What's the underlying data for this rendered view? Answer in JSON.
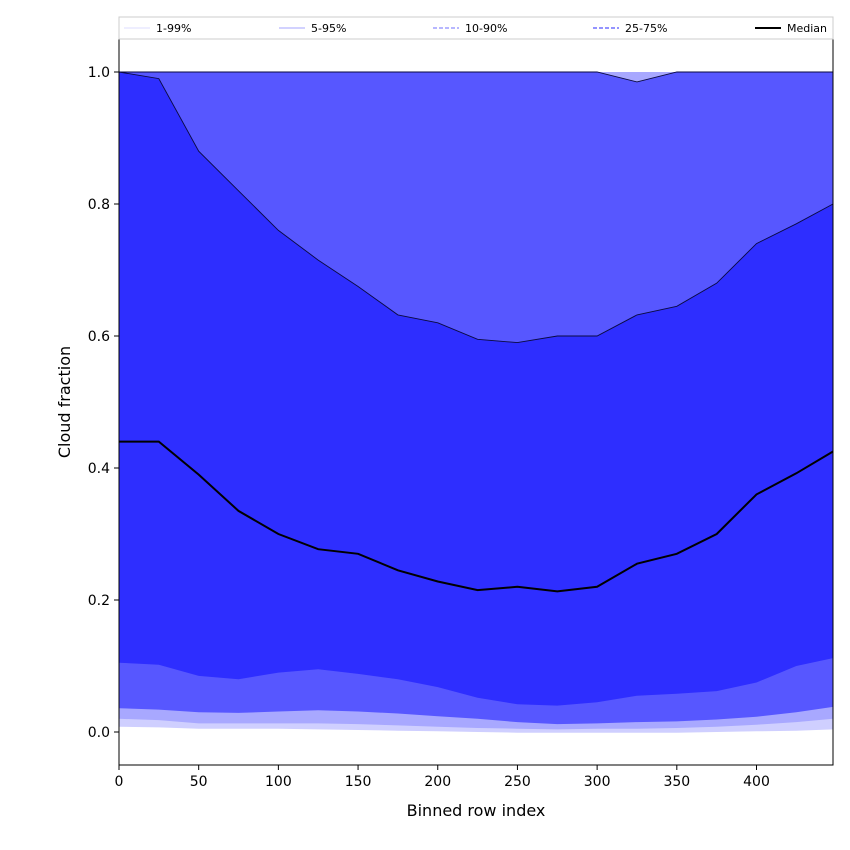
{
  "chart_data": {
    "type": "area",
    "xlabel": "Binned row index",
    "ylabel": "Cloud fraction",
    "xlim": [
      0,
      448
    ],
    "ylim": [
      -0.05,
      1.05
    ],
    "xticks": [
      0,
      50,
      100,
      150,
      200,
      250,
      300,
      350,
      400
    ],
    "yticks": [
      0.0,
      0.2,
      0.4,
      0.6,
      0.8,
      1.0
    ],
    "xtick_labels": [
      "0",
      "50",
      "100",
      "150",
      "200",
      "250",
      "300",
      "350",
      "400"
    ],
    "ytick_labels": [
      "0.0",
      "0.2",
      "0.4",
      "0.6",
      "0.8",
      "1.0"
    ],
    "legend_position": "top",
    "legend": [
      {
        "label": "1-99%",
        "color": "#e3e3ff",
        "style": "solid"
      },
      {
        "label": "5-95%",
        "color": "#b8b8ff",
        "style": "solid"
      },
      {
        "label": "10-90%",
        "color": "#8c8cff",
        "style": "dashed"
      },
      {
        "label": "25-75%",
        "color": "#5555ff",
        "style": "dashed"
      },
      {
        "label": "Median",
        "color": "#000000",
        "style": "solid"
      }
    ],
    "x": [
      0,
      25,
      50,
      75,
      100,
      125,
      150,
      175,
      200,
      225,
      250,
      275,
      300,
      325,
      350,
      375,
      400,
      425,
      448
    ],
    "bands": [
      {
        "name": "1-99%",
        "color": "#cfcfff",
        "lower": [
          0.008,
          0.007,
          0.005,
          0.005,
          0.005,
          0.004,
          0.003,
          0.002,
          0.001,
          0.0,
          -0.001,
          -0.001,
          -0.001,
          -0.001,
          -0.001,
          0.0,
          0.001,
          0.002,
          0.004
        ],
        "upper": [
          1.0,
          1.0,
          1.0,
          1.0,
          1.0,
          1.0,
          1.0,
          1.0,
          1.0,
          1.0,
          1.0,
          1.0,
          1.0,
          1.0,
          1.0,
          1.0,
          1.0,
          1.0,
          1.0
        ]
      },
      {
        "name": "5-95%",
        "color": "#a8a8ff",
        "lower": [
          0.02,
          0.018,
          0.013,
          0.013,
          0.013,
          0.013,
          0.012,
          0.01,
          0.008,
          0.006,
          0.005,
          0.004,
          0.005,
          0.005,
          0.006,
          0.008,
          0.011,
          0.015,
          0.02
        ],
        "upper": [
          1.0,
          1.0,
          1.0,
          1.0,
          1.0,
          1.0,
          1.0,
          1.0,
          1.0,
          1.0,
          1.0,
          1.0,
          1.0,
          1.0,
          1.0,
          1.0,
          1.0,
          1.0,
          1.0
        ]
      },
      {
        "name": "10-90%",
        "color": "#5757ff",
        "lower": [
          0.036,
          0.034,
          0.03,
          0.029,
          0.031,
          0.033,
          0.031,
          0.028,
          0.024,
          0.02,
          0.015,
          0.012,
          0.013,
          0.015,
          0.016,
          0.019,
          0.023,
          0.03,
          0.038
        ],
        "upper": [
          1.0,
          1.0,
          1.0,
          1.0,
          1.0,
          1.0,
          1.0,
          1.0,
          1.0,
          1.0,
          1.0,
          1.0,
          1.0,
          0.985,
          1.0,
          1.0,
          1.0,
          1.0,
          1.0
        ]
      },
      {
        "name": "25-75%",
        "color": "#2e2eff",
        "lower": [
          0.105,
          0.102,
          0.085,
          0.08,
          0.09,
          0.095,
          0.088,
          0.08,
          0.068,
          0.052,
          0.042,
          0.04,
          0.045,
          0.055,
          0.058,
          0.062,
          0.075,
          0.1,
          0.112
        ],
        "upper": [
          1.0,
          0.99,
          0.88,
          0.82,
          0.76,
          0.715,
          0.675,
          0.632,
          0.62,
          0.595,
          0.59,
          0.6,
          0.6,
          0.632,
          0.645,
          0.68,
          0.74,
          0.77,
          0.8
        ]
      }
    ],
    "median": {
      "name": "Median",
      "color": "#000000",
      "values": [
        0.44,
        0.44,
        0.39,
        0.335,
        0.3,
        0.277,
        0.27,
        0.245,
        0.228,
        0.215,
        0.22,
        0.213,
        0.22,
        0.255,
        0.27,
        0.3,
        0.36,
        0.392,
        0.425
      ]
    }
  }
}
